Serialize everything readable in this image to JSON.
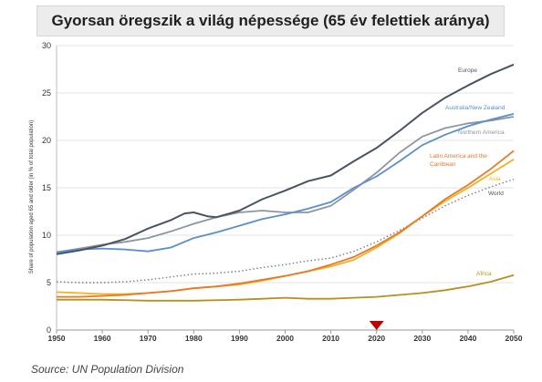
{
  "title": "Gyorsan öregszik a világ népessége (65 év felettiek aránya)",
  "source": "Source: UN Population Division",
  "chart_data": {
    "type": "line",
    "ylabel": "Share of population aged 65 and older (in % of total population)",
    "xlabel": "",
    "xlim": [
      1950,
      2050
    ],
    "ylim": [
      0,
      30
    ],
    "xticks": [
      1950,
      1960,
      1970,
      1980,
      1990,
      2000,
      2010,
      2020,
      2030,
      2040,
      2050
    ],
    "yticks": [
      0,
      5,
      10,
      15,
      20,
      25,
      30
    ],
    "marker_x": 2020,
    "series": [
      {
        "name": "Europe",
        "color": "#4a5363",
        "dashed": false,
        "points": [
          [
            1950,
            8.0
          ],
          [
            1955,
            8.4
          ],
          [
            1960,
            8.9
          ],
          [
            1965,
            9.6
          ],
          [
            1970,
            10.7
          ],
          [
            1975,
            11.6
          ],
          [
            1978,
            12.3
          ],
          [
            1980,
            12.4
          ],
          [
            1983,
            12.0
          ],
          [
            1985,
            11.9
          ],
          [
            1990,
            12.6
          ],
          [
            1995,
            13.8
          ],
          [
            2000,
            14.7
          ],
          [
            2005,
            15.7
          ],
          [
            2010,
            16.3
          ],
          [
            2015,
            17.8
          ],
          [
            2020,
            19.2
          ],
          [
            2025,
            21.0
          ],
          [
            2030,
            22.9
          ],
          [
            2035,
            24.5
          ],
          [
            2040,
            25.8
          ],
          [
            2045,
            27.0
          ],
          [
            2050,
            28.0
          ]
        ]
      },
      {
        "name": "Australia/New Zealand",
        "color": "#5b8fc9",
        "dashed": false,
        "points": [
          [
            1950,
            8.2
          ],
          [
            1955,
            8.5
          ],
          [
            1960,
            8.6
          ],
          [
            1965,
            8.5
          ],
          [
            1970,
            8.3
          ],
          [
            1975,
            8.7
          ],
          [
            1980,
            9.7
          ],
          [
            1985,
            10.3
          ],
          [
            1990,
            11.0
          ],
          [
            1995,
            11.7
          ],
          [
            2000,
            12.2
          ],
          [
            2005,
            12.8
          ],
          [
            2010,
            13.5
          ],
          [
            2015,
            15.0
          ],
          [
            2020,
            16.2
          ],
          [
            2025,
            17.8
          ],
          [
            2030,
            19.5
          ],
          [
            2035,
            20.6
          ],
          [
            2040,
            21.5
          ],
          [
            2045,
            22.2
          ],
          [
            2050,
            22.8
          ]
        ]
      },
      {
        "name": "Northern America",
        "color": "#8c95a3",
        "dashed": false,
        "points": [
          [
            1950,
            8.2
          ],
          [
            1955,
            8.6
          ],
          [
            1960,
            9.0
          ],
          [
            1965,
            9.3
          ],
          [
            1970,
            9.7
          ],
          [
            1975,
            10.4
          ],
          [
            1980,
            11.2
          ],
          [
            1985,
            11.9
          ],
          [
            1990,
            12.4
          ],
          [
            1995,
            12.6
          ],
          [
            2000,
            12.4
          ],
          [
            2005,
            12.4
          ],
          [
            2010,
            13.1
          ],
          [
            2015,
            14.8
          ],
          [
            2020,
            16.6
          ],
          [
            2025,
            18.7
          ],
          [
            2030,
            20.4
          ],
          [
            2035,
            21.3
          ],
          [
            2040,
            21.8
          ],
          [
            2045,
            22.1
          ],
          [
            2050,
            22.5
          ]
        ]
      },
      {
        "name": "Latin America and the Carribean",
        "color": "#e8782a",
        "dashed": false,
        "points": [
          [
            1950,
            3.5
          ],
          [
            1955,
            3.5
          ],
          [
            1960,
            3.6
          ],
          [
            1965,
            3.7
          ],
          [
            1970,
            3.9
          ],
          [
            1975,
            4.1
          ],
          [
            1980,
            4.4
          ],
          [
            1985,
            4.6
          ],
          [
            1990,
            4.9
          ],
          [
            1995,
            5.3
          ],
          [
            2000,
            5.7
          ],
          [
            2005,
            6.2
          ],
          [
            2010,
            6.9
          ],
          [
            2015,
            7.7
          ],
          [
            2020,
            8.9
          ],
          [
            2025,
            10.3
          ],
          [
            2030,
            12.0
          ],
          [
            2035,
            13.8
          ],
          [
            2040,
            15.3
          ],
          [
            2045,
            17.0
          ],
          [
            2050,
            18.9
          ]
        ]
      },
      {
        "name": "Asia",
        "color": "#f3b11d",
        "dashed": false,
        "points": [
          [
            1950,
            4.0
          ],
          [
            1955,
            3.9
          ],
          [
            1960,
            3.8
          ],
          [
            1965,
            3.8
          ],
          [
            1970,
            3.9
          ],
          [
            1975,
            4.1
          ],
          [
            1980,
            4.4
          ],
          [
            1985,
            4.6
          ],
          [
            1990,
            4.8
          ],
          [
            1995,
            5.2
          ],
          [
            2000,
            5.7
          ],
          [
            2005,
            6.2
          ],
          [
            2010,
            6.7
          ],
          [
            2015,
            7.4
          ],
          [
            2020,
            8.7
          ],
          [
            2025,
            10.2
          ],
          [
            2030,
            12.0
          ],
          [
            2035,
            13.6
          ],
          [
            2040,
            15.0
          ],
          [
            2045,
            16.5
          ],
          [
            2050,
            18.0
          ]
        ]
      },
      {
        "name": "World",
        "color": "#7d7d7d",
        "dashed": true,
        "points": [
          [
            1950,
            5.1
          ],
          [
            1955,
            5.0
          ],
          [
            1960,
            5.0
          ],
          [
            1965,
            5.1
          ],
          [
            1970,
            5.3
          ],
          [
            1975,
            5.6
          ],
          [
            1980,
            5.9
          ],
          [
            1985,
            6.0
          ],
          [
            1990,
            6.2
          ],
          [
            1995,
            6.6
          ],
          [
            2000,
            6.9
          ],
          [
            2005,
            7.3
          ],
          [
            2010,
            7.6
          ],
          [
            2015,
            8.3
          ],
          [
            2020,
            9.3
          ],
          [
            2025,
            10.5
          ],
          [
            2030,
            11.8
          ],
          [
            2035,
            13.1
          ],
          [
            2040,
            14.2
          ],
          [
            2045,
            15.1
          ],
          [
            2050,
            15.9
          ]
        ]
      },
      {
        "name": "Africa",
        "color": "#b8901e",
        "dashed": false,
        "points": [
          [
            1950,
            3.2
          ],
          [
            1960,
            3.2
          ],
          [
            1970,
            3.1
          ],
          [
            1980,
            3.1
          ],
          [
            1990,
            3.2
          ],
          [
            1995,
            3.3
          ],
          [
            2000,
            3.4
          ],
          [
            2005,
            3.3
          ],
          [
            2010,
            3.3
          ],
          [
            2015,
            3.4
          ],
          [
            2020,
            3.5
          ],
          [
            2025,
            3.7
          ],
          [
            2030,
            3.9
          ],
          [
            2035,
            4.2
          ],
          [
            2040,
            4.6
          ],
          [
            2045,
            5.1
          ],
          [
            2050,
            5.8
          ]
        ]
      }
    ]
  }
}
